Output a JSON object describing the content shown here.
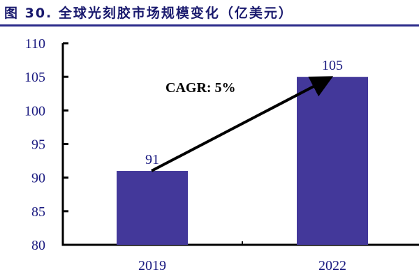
{
  "title": "图 30. 全球光刻胶市场规模变化（亿美元）",
  "chart_data": {
    "type": "bar",
    "title": "图 30. 全球光刻胶市场规模变化（亿美元）",
    "categories": [
      "2019",
      "2022"
    ],
    "values": [
      91,
      105
    ],
    "data_labels": [
      "91",
      "105"
    ],
    "ylim": [
      80,
      110
    ],
    "yticks": [
      80,
      85,
      90,
      95,
      100,
      105,
      110
    ],
    "xlabel": "",
    "ylabel": "",
    "grid": false,
    "annotation": "CAGR:  5%",
    "bar_color": "#43389a",
    "tick_color": "#1a1a80"
  }
}
